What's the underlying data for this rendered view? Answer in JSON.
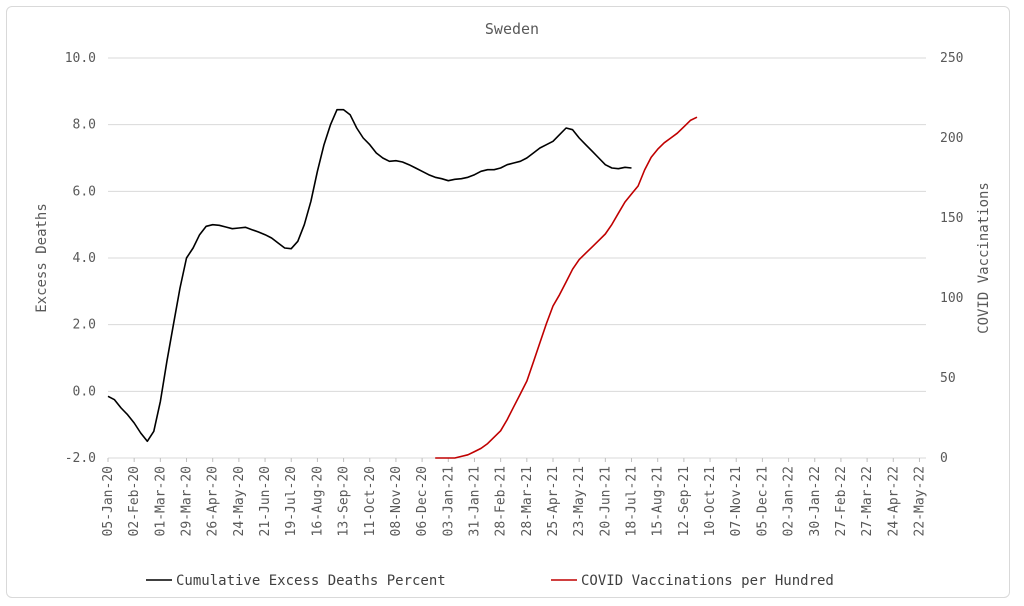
{
  "chart_data": {
    "type": "line",
    "title": "Sweden",
    "ylabel_left": "Excess Deaths",
    "ylabel_right": "COVID Vaccinations",
    "ylim_left": [
      -2.0,
      10.0
    ],
    "ylim_right": [
      0,
      250
    ],
    "yticks_left": [
      "-2.0",
      "0.0",
      "2.0",
      "4.0",
      "6.0",
      "8.0",
      "10.0"
    ],
    "yticks_right": [
      "0",
      "50",
      "100",
      "150",
      "200",
      "250"
    ],
    "x_range_weeks": [
      0,
      125
    ],
    "x_tick_labels": [
      "05-Jan-20",
      "02-Feb-20",
      "01-Mar-20",
      "29-Mar-20",
      "26-Apr-20",
      "24-May-20",
      "21-Jun-20",
      "19-Jul-20",
      "16-Aug-20",
      "13-Sep-20",
      "11-Oct-20",
      "08-Nov-20",
      "06-Dec-20",
      "03-Jan-21",
      "31-Jan-21",
      "28-Feb-21",
      "28-Mar-21",
      "25-Apr-21",
      "23-May-21",
      "20-Jun-21",
      "18-Jul-21",
      "15-Aug-21",
      "12-Sep-21",
      "10-Oct-21",
      "07-Nov-21",
      "05-Dec-21",
      "02-Jan-22",
      "30-Jan-22",
      "27-Feb-22",
      "27-Mar-22",
      "24-Apr-22",
      "22-May-22"
    ],
    "series": [
      {
        "name": "Cumulative Excess Deaths Percent",
        "color": "#000000",
        "axis": "left",
        "points": [
          [
            0,
            -0.15
          ],
          [
            1,
            -0.25
          ],
          [
            2,
            -0.5
          ],
          [
            3,
            -0.7
          ],
          [
            4,
            -0.95
          ],
          [
            5,
            -1.25
          ],
          [
            6,
            -1.5
          ],
          [
            7,
            -1.2
          ],
          [
            8,
            -0.3
          ],
          [
            9,
            0.9
          ],
          [
            10,
            2.0
          ],
          [
            11,
            3.1
          ],
          [
            12,
            4.0
          ],
          [
            13,
            4.3
          ],
          [
            14,
            4.7
          ],
          [
            15,
            4.95
          ],
          [
            16,
            5.0
          ],
          [
            17,
            4.98
          ],
          [
            18,
            4.93
          ],
          [
            19,
            4.88
          ],
          [
            20,
            4.9
          ],
          [
            21,
            4.92
          ],
          [
            22,
            4.85
          ],
          [
            23,
            4.78
          ],
          [
            24,
            4.7
          ],
          [
            25,
            4.6
          ],
          [
            26,
            4.45
          ],
          [
            27,
            4.3
          ],
          [
            28,
            4.28
          ],
          [
            29,
            4.5
          ],
          [
            30,
            5.0
          ],
          [
            31,
            5.7
          ],
          [
            32,
            6.6
          ],
          [
            33,
            7.4
          ],
          [
            34,
            8.0
          ],
          [
            35,
            8.45
          ],
          [
            36,
            8.45
          ],
          [
            37,
            8.3
          ],
          [
            38,
            7.9
          ],
          [
            39,
            7.6
          ],
          [
            40,
            7.4
          ],
          [
            41,
            7.15
          ],
          [
            42,
            7.0
          ],
          [
            43,
            6.9
          ],
          [
            44,
            6.92
          ],
          [
            45,
            6.88
          ],
          [
            46,
            6.8
          ],
          [
            47,
            6.7
          ],
          [
            48,
            6.6
          ],
          [
            49,
            6.5
          ],
          [
            50,
            6.42
          ],
          [
            51,
            6.38
          ],
          [
            52,
            6.32
          ],
          [
            53,
            6.36
          ],
          [
            54,
            6.38
          ],
          [
            55,
            6.42
          ],
          [
            56,
            6.5
          ],
          [
            57,
            6.6
          ],
          [
            58,
            6.65
          ],
          [
            59,
            6.65
          ],
          [
            60,
            6.7
          ],
          [
            61,
            6.8
          ],
          [
            62,
            6.85
          ],
          [
            63,
            6.9
          ],
          [
            64,
            7.0
          ],
          [
            65,
            7.15
          ],
          [
            66,
            7.3
          ],
          [
            67,
            7.4
          ],
          [
            68,
            7.5
          ],
          [
            69,
            7.7
          ],
          [
            70,
            7.9
          ],
          [
            71,
            7.85
          ],
          [
            72,
            7.6
          ],
          [
            73,
            7.4
          ],
          [
            74,
            7.2
          ],
          [
            75,
            7.0
          ],
          [
            76,
            6.8
          ],
          [
            77,
            6.7
          ],
          [
            78,
            6.68
          ],
          [
            79,
            6.72
          ],
          [
            80,
            6.7
          ]
        ]
      },
      {
        "name": "COVID Vaccinations per Hundred",
        "color": "#c00000",
        "axis": "right",
        "points": [
          [
            50,
            0
          ],
          [
            51,
            0
          ],
          [
            52,
            0
          ],
          [
            53,
            0
          ],
          [
            54,
            1
          ],
          [
            55,
            2
          ],
          [
            56,
            4
          ],
          [
            57,
            6
          ],
          [
            58,
            9
          ],
          [
            59,
            13
          ],
          [
            60,
            17
          ],
          [
            61,
            24
          ],
          [
            62,
            32
          ],
          [
            63,
            40
          ],
          [
            64,
            48
          ],
          [
            65,
            60
          ],
          [
            66,
            72
          ],
          [
            67,
            84
          ],
          [
            68,
            95
          ],
          [
            69,
            102
          ],
          [
            70,
            110
          ],
          [
            71,
            118
          ],
          [
            72,
            124
          ],
          [
            73,
            128
          ],
          [
            74,
            132
          ],
          [
            75,
            136
          ],
          [
            76,
            140
          ],
          [
            77,
            146
          ],
          [
            78,
            153
          ],
          [
            79,
            160
          ],
          [
            80,
            165
          ],
          [
            81,
            170
          ],
          [
            82,
            180
          ],
          [
            83,
            188
          ],
          [
            84,
            193
          ],
          [
            85,
            197
          ],
          [
            86,
            200
          ],
          [
            87,
            203
          ],
          [
            88,
            207
          ],
          [
            89,
            211
          ],
          [
            90,
            213
          ]
        ]
      }
    ],
    "legend": [
      "Cumulative Excess Deaths Percent",
      "COVID Vaccinations per Hundred"
    ],
    "legend_position": "bottom",
    "grid": true
  }
}
